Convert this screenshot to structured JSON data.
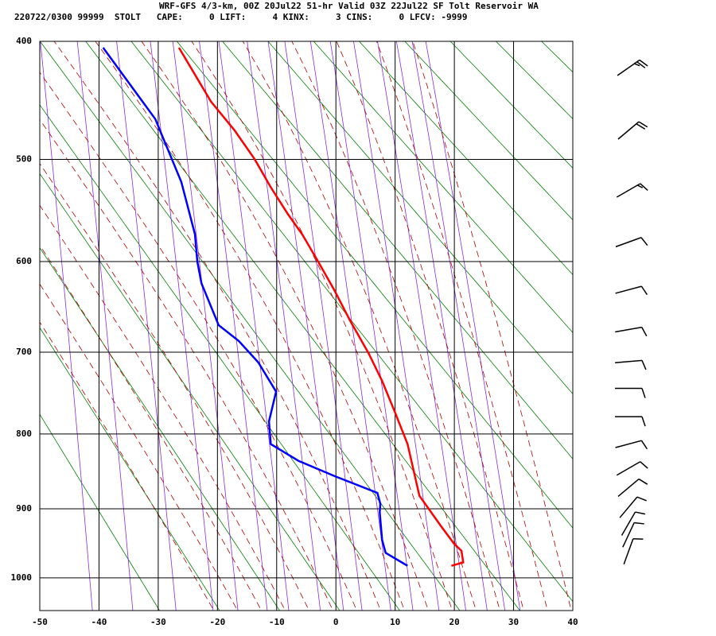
{
  "chart_data": {
    "type": "skewt",
    "title": "WRF-GFS 4/3-km, 00Z 20Jul22 51-hr Valid 03Z 22Jul22 SF Tolt Reservoir WA",
    "subtitle": "220722/0300 99999  STOLT   CAPE:     0 LIFT:     4 KINX:     3 CINS:     0 LFCV: -9999",
    "xlim": [
      -50,
      40
    ],
    "xticks": [
      -50,
      -40,
      -30,
      -20,
      -10,
      0,
      10,
      20,
      30,
      40
    ],
    "ylim": [
      400,
      1050
    ],
    "yticks": [
      400,
      500,
      600,
      700,
      800,
      900,
      1000
    ],
    "grid": true,
    "temperature": {
      "color": "#ff0000",
      "p": [
        982,
        977,
        960,
        949,
        925,
        882,
        813,
        773,
        734,
        701,
        664,
        630,
        600,
        572,
        552,
        526,
        500,
        474,
        449,
        405
      ],
      "t": [
        19.5,
        21.5,
        21.2,
        19.9,
        17.8,
        14.1,
        12.1,
        10.0,
        7.8,
        5.5,
        2.4,
        -0.3,
        -3.0,
        -5.7,
        -8.1,
        -11.0,
        -13.7,
        -17.1,
        -21.1,
        -26.5
      ]
    },
    "dewpoint": {
      "color": "#0000ff",
      "p": [
        982,
        963,
        944,
        905,
        893,
        878,
        855,
        835,
        813,
        784,
        747,
        712,
        687,
        669,
        623,
        600,
        572,
        521,
        464,
        405
      ],
      "t": [
        12.1,
        8.4,
        7.8,
        7.4,
        7.5,
        7.0,
        -0.3,
        -6.3,
        -11.0,
        -11.3,
        -10.1,
        -13.1,
        -16.4,
        -19.8,
        -22.7,
        -23.4,
        -23.8,
        -26.1,
        -30.5,
        -39.3
      ]
    },
    "wind": {
      "color": "#000000",
      "p": [
        421,
        474,
        529,
        580,
        630,
        674,
        711,
        743,
        778,
        813,
        845,
        871,
        898,
        921,
        937,
        961
      ],
      "direction": [
        55,
        50,
        60,
        70,
        75,
        80,
        85,
        90,
        90,
        75,
        60,
        50,
        40,
        30,
        25,
        20
      ],
      "speed": [
        25,
        20,
        15,
        10,
        10,
        10,
        10,
        10,
        10,
        10,
        10,
        10,
        10,
        10,
        10,
        10
      ]
    }
  }
}
